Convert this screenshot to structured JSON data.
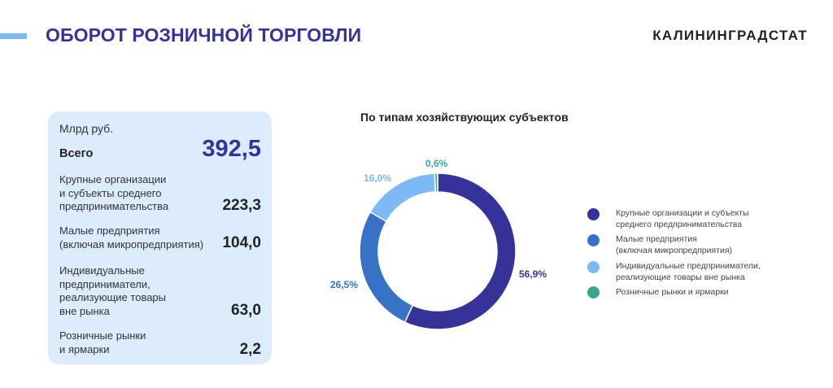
{
  "header": {
    "title": "ОБОРОТ РОЗНИЧНОЙ ТОРГОВЛИ",
    "brand": "КАЛИНИНГРАДСТАТ",
    "accent_color": "#7cb9f5"
  },
  "summary_card": {
    "unit": "Млрд руб.",
    "total_label": "Всего",
    "total_value": "392,5",
    "rows": [
      {
        "label_lines": [
          "Крупные организации",
          "и субъекты среднего",
          "предпринимательства"
        ],
        "value": "223,3"
      },
      {
        "label_lines": [
          "Малые предприятия",
          "(включая микропредприятия)"
        ],
        "value": "104,0"
      },
      {
        "label_lines": [
          "Индивидуальные",
          "предприниматели,",
          "реализующие товары",
          "вне рынка"
        ],
        "value": "63,0"
      },
      {
        "label_lines": [
          "Розничные рынки",
          "и ярмарки"
        ],
        "value": "2,2"
      }
    ]
  },
  "chart": {
    "title": "По типам хозяйствующих субъектов",
    "labels": {
      "large": "56,9%",
      "small": "26,5%",
      "individual": "16,0%",
      "markets": "0,6%"
    },
    "legend": [
      {
        "lines": [
          "Крупные организации и субъекты",
          "среднего предпринимательства"
        ],
        "color": "#35329a"
      },
      {
        "lines": [
          "Малые предприятия",
          "(включая микропредприятия)"
        ],
        "color": "#3872c6"
      },
      {
        "lines": [
          "Индивидуальные предприниматели,",
          "реализующие товары вне рынка"
        ],
        "color": "#7cb9f5"
      },
      {
        "lines": [
          "Розничные рынки и ярмарки"
        ],
        "color": "#3fa68e"
      }
    ]
  },
  "chart_data": {
    "type": "pie",
    "variant": "donut",
    "title": "По типам хозяйствующих субъектов",
    "categories": [
      "Крупные организации и субъекты среднего предпринимательства",
      "Малые предприятия (включая микропредприятия)",
      "Индивидуальные предприниматели, реализующие товары вне рынка",
      "Розничные рынки и ярмарки"
    ],
    "values": [
      56.9,
      26.5,
      16.0,
      0.6
    ],
    "absolute_values_bn_rub": [
      223.3,
      104.0,
      63.0,
      2.2
    ],
    "total_bn_rub": 392.5,
    "unit": "%",
    "colors": [
      "#35329a",
      "#3872c6",
      "#7cb9f5",
      "#3fa68e"
    ],
    "legend_position": "right",
    "start_angle": "12 o'clock, clockwise"
  }
}
